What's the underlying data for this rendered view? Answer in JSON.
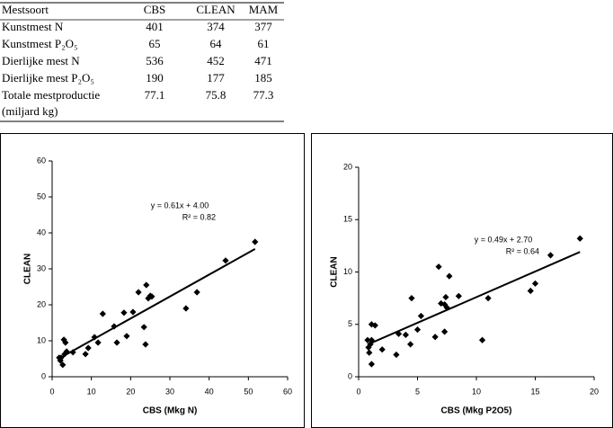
{
  "table": {
    "header": [
      "Mestsoort",
      "CBS",
      "CLEAN",
      "MAM"
    ],
    "rows": [
      [
        [
          "Kunstmest N"
        ],
        401,
        374,
        377
      ],
      [
        [
          "Kunstmest P₂O₅"
        ],
        65,
        64,
        61
      ],
      [
        [
          "Dierlijke mest N"
        ],
        536,
        452,
        471
      ],
      [
        [
          "Dierlijke mest P₂O₅"
        ],
        190,
        177,
        185
      ],
      [
        [
          "Totale mestproductie",
          "(miljard kg)"
        ],
        77.1,
        75.8,
        77.3
      ]
    ]
  },
  "chart_data": [
    {
      "type": "scatter",
      "x_label": "CBS (Mkg N)",
      "y_label": "CLEAN",
      "color": "#000000",
      "x": [
        1.8,
        2.1,
        2.3,
        2.7,
        3.0,
        3.4,
        3.7,
        3.2,
        5.3,
        8.5,
        9.2,
        10.8,
        11.7,
        12.9,
        15.8,
        16.5,
        18.3,
        19.0,
        20.6,
        22.0,
        23.4,
        23.8,
        24.0,
        24.5,
        25.0,
        25.4,
        34.1,
        36.9,
        44.2,
        51.7
      ],
      "values": [
        5.3,
        4.5,
        5.3,
        3.3,
        10.3,
        9.5,
        7.0,
        6.3,
        6.8,
        6.3,
        8.0,
        11.0,
        9.5,
        17.5,
        14.0,
        9.5,
        17.8,
        11.3,
        18.0,
        23.5,
        13.8,
        9.0,
        25.5,
        21.8,
        22.5,
        22.3,
        19.0,
        23.5,
        32.3,
        37.5
      ],
      "xlim": [
        0,
        60
      ],
      "xticks": [
        0,
        10,
        20,
        30,
        40,
        50,
        60
      ],
      "ylim": [
        0,
        60
      ],
      "yticks": [
        0,
        10,
        20,
        30,
        40,
        50,
        60
      ],
      "trendline": {
        "slope": 0.61,
        "intercept": 4.0
      },
      "annotations": [
        "y = 0.61x + 4.00",
        "R² = 0.82"
      ]
    },
    {
      "type": "scatter",
      "x_label": "CBS (Mkg P2O5)",
      "y_label": "CLEAN",
      "color": "#000000",
      "x": [
        0.76,
        0.84,
        0.9,
        1.0,
        1.1,
        1.1,
        1.4,
        1.1,
        2.0,
        3.2,
        3.4,
        4.0,
        4.4,
        4.5,
        5.0,
        5.3,
        6.5,
        6.8,
        7.0,
        7.3,
        7.3,
        7.4,
        7.5,
        7.7,
        8.5,
        10.5,
        11.0,
        14.6,
        15.0,
        16.3,
        18.8
      ],
      "values": [
        3.5,
        2.8,
        2.3,
        3.1,
        5.0,
        1.2,
        4.9,
        3.5,
        2.6,
        2.1,
        4.1,
        4.0,
        3.1,
        7.5,
        4.5,
        5.8,
        3.8,
        10.5,
        7.0,
        6.9,
        4.3,
        7.6,
        6.6,
        9.6,
        7.7,
        3.5,
        7.5,
        8.2,
        8.9,
        11.6,
        13.2
      ],
      "xlim": [
        0,
        20
      ],
      "xticks": [
        0,
        5,
        10,
        15,
        20
      ],
      "ylim": [
        0,
        20
      ],
      "yticks": [
        0,
        5,
        10,
        15,
        20
      ],
      "trendline": {
        "slope": 0.49,
        "intercept": 2.7
      },
      "annotations": [
        "y = 0.49x + 2.70",
        "R² = 0.64"
      ]
    }
  ]
}
